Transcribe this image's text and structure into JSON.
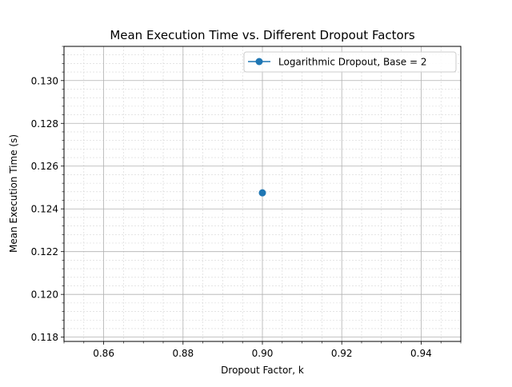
{
  "chart_data": {
    "type": "line",
    "title": "Mean Execution Time vs. Different Dropout Factors",
    "xlabel": "Dropout Factor, k",
    "ylabel": "Mean Execution Time (s)",
    "xlim": [
      0.85,
      0.95
    ],
    "ylim": [
      0.1178,
      0.1316
    ],
    "xticks": [
      0.86,
      0.88,
      0.9,
      0.92,
      0.94
    ],
    "xtick_labels": [
      "0.86",
      "0.88",
      "0.90",
      "0.92",
      "0.94"
    ],
    "yticks": [
      0.118,
      0.12,
      0.122,
      0.124,
      0.126,
      0.128,
      0.13
    ],
    "ytick_labels": [
      "0.118",
      "0.120",
      "0.122",
      "0.124",
      "0.126",
      "0.128",
      "0.130"
    ],
    "grid": {
      "major": true,
      "minor": true
    },
    "legend": {
      "placement": "top-right"
    },
    "series": [
      {
        "name": "Logarithmic Dropout, Base = 2",
        "color": "#1f77b4",
        "marker": "circle",
        "x": [
          0.9
        ],
        "y": [
          0.12475
        ]
      }
    ]
  }
}
